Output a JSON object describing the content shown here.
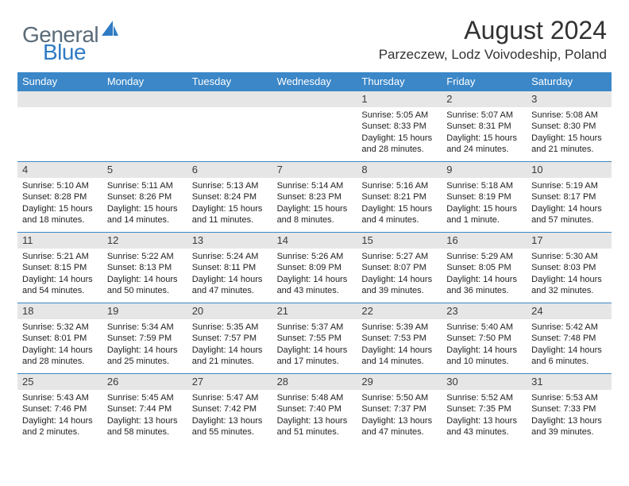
{
  "brand": {
    "part1": "General",
    "part2": "Blue"
  },
  "title": "August 2024",
  "location": "Parzeczew, Lodz Voivodeship, Poland",
  "colors": {
    "header_bg": "#3b87c8",
    "header_text": "#ffffff",
    "daynum_bg": "#e6e6e6",
    "week_border": "#3b87c8",
    "title_color": "#323232",
    "logo_gray": "#5a6a78",
    "logo_blue": "#2f7bc4"
  },
  "typography": {
    "title_fontsize": 32,
    "subtitle_fontsize": 17,
    "dayheader_fontsize": 13,
    "daynum_fontsize": 13,
    "body_fontsize": 11
  },
  "layout": {
    "columns": 7,
    "rows": 5,
    "cell_min_height": 88
  },
  "day_names": [
    "Sunday",
    "Monday",
    "Tuesday",
    "Wednesday",
    "Thursday",
    "Friday",
    "Saturday"
  ],
  "weeks": [
    [
      {
        "num": "",
        "sunrise": "",
        "sunset": "",
        "daylight": ""
      },
      {
        "num": "",
        "sunrise": "",
        "sunset": "",
        "daylight": ""
      },
      {
        "num": "",
        "sunrise": "",
        "sunset": "",
        "daylight": ""
      },
      {
        "num": "",
        "sunrise": "",
        "sunset": "",
        "daylight": ""
      },
      {
        "num": "1",
        "sunrise": "Sunrise: 5:05 AM",
        "sunset": "Sunset: 8:33 PM",
        "daylight": "Daylight: 15 hours and 28 minutes."
      },
      {
        "num": "2",
        "sunrise": "Sunrise: 5:07 AM",
        "sunset": "Sunset: 8:31 PM",
        "daylight": "Daylight: 15 hours and 24 minutes."
      },
      {
        "num": "3",
        "sunrise": "Sunrise: 5:08 AM",
        "sunset": "Sunset: 8:30 PM",
        "daylight": "Daylight: 15 hours and 21 minutes."
      }
    ],
    [
      {
        "num": "4",
        "sunrise": "Sunrise: 5:10 AM",
        "sunset": "Sunset: 8:28 PM",
        "daylight": "Daylight: 15 hours and 18 minutes."
      },
      {
        "num": "5",
        "sunrise": "Sunrise: 5:11 AM",
        "sunset": "Sunset: 8:26 PM",
        "daylight": "Daylight: 15 hours and 14 minutes."
      },
      {
        "num": "6",
        "sunrise": "Sunrise: 5:13 AM",
        "sunset": "Sunset: 8:24 PM",
        "daylight": "Daylight: 15 hours and 11 minutes."
      },
      {
        "num": "7",
        "sunrise": "Sunrise: 5:14 AM",
        "sunset": "Sunset: 8:23 PM",
        "daylight": "Daylight: 15 hours and 8 minutes."
      },
      {
        "num": "8",
        "sunrise": "Sunrise: 5:16 AM",
        "sunset": "Sunset: 8:21 PM",
        "daylight": "Daylight: 15 hours and 4 minutes."
      },
      {
        "num": "9",
        "sunrise": "Sunrise: 5:18 AM",
        "sunset": "Sunset: 8:19 PM",
        "daylight": "Daylight: 15 hours and 1 minute."
      },
      {
        "num": "10",
        "sunrise": "Sunrise: 5:19 AM",
        "sunset": "Sunset: 8:17 PM",
        "daylight": "Daylight: 14 hours and 57 minutes."
      }
    ],
    [
      {
        "num": "11",
        "sunrise": "Sunrise: 5:21 AM",
        "sunset": "Sunset: 8:15 PM",
        "daylight": "Daylight: 14 hours and 54 minutes."
      },
      {
        "num": "12",
        "sunrise": "Sunrise: 5:22 AM",
        "sunset": "Sunset: 8:13 PM",
        "daylight": "Daylight: 14 hours and 50 minutes."
      },
      {
        "num": "13",
        "sunrise": "Sunrise: 5:24 AM",
        "sunset": "Sunset: 8:11 PM",
        "daylight": "Daylight: 14 hours and 47 minutes."
      },
      {
        "num": "14",
        "sunrise": "Sunrise: 5:26 AM",
        "sunset": "Sunset: 8:09 PM",
        "daylight": "Daylight: 14 hours and 43 minutes."
      },
      {
        "num": "15",
        "sunrise": "Sunrise: 5:27 AM",
        "sunset": "Sunset: 8:07 PM",
        "daylight": "Daylight: 14 hours and 39 minutes."
      },
      {
        "num": "16",
        "sunrise": "Sunrise: 5:29 AM",
        "sunset": "Sunset: 8:05 PM",
        "daylight": "Daylight: 14 hours and 36 minutes."
      },
      {
        "num": "17",
        "sunrise": "Sunrise: 5:30 AM",
        "sunset": "Sunset: 8:03 PM",
        "daylight": "Daylight: 14 hours and 32 minutes."
      }
    ],
    [
      {
        "num": "18",
        "sunrise": "Sunrise: 5:32 AM",
        "sunset": "Sunset: 8:01 PM",
        "daylight": "Daylight: 14 hours and 28 minutes."
      },
      {
        "num": "19",
        "sunrise": "Sunrise: 5:34 AM",
        "sunset": "Sunset: 7:59 PM",
        "daylight": "Daylight: 14 hours and 25 minutes."
      },
      {
        "num": "20",
        "sunrise": "Sunrise: 5:35 AM",
        "sunset": "Sunset: 7:57 PM",
        "daylight": "Daylight: 14 hours and 21 minutes."
      },
      {
        "num": "21",
        "sunrise": "Sunrise: 5:37 AM",
        "sunset": "Sunset: 7:55 PM",
        "daylight": "Daylight: 14 hours and 17 minutes."
      },
      {
        "num": "22",
        "sunrise": "Sunrise: 5:39 AM",
        "sunset": "Sunset: 7:53 PM",
        "daylight": "Daylight: 14 hours and 14 minutes."
      },
      {
        "num": "23",
        "sunrise": "Sunrise: 5:40 AM",
        "sunset": "Sunset: 7:50 PM",
        "daylight": "Daylight: 14 hours and 10 minutes."
      },
      {
        "num": "24",
        "sunrise": "Sunrise: 5:42 AM",
        "sunset": "Sunset: 7:48 PM",
        "daylight": "Daylight: 14 hours and 6 minutes."
      }
    ],
    [
      {
        "num": "25",
        "sunrise": "Sunrise: 5:43 AM",
        "sunset": "Sunset: 7:46 PM",
        "daylight": "Daylight: 14 hours and 2 minutes."
      },
      {
        "num": "26",
        "sunrise": "Sunrise: 5:45 AM",
        "sunset": "Sunset: 7:44 PM",
        "daylight": "Daylight: 13 hours and 58 minutes."
      },
      {
        "num": "27",
        "sunrise": "Sunrise: 5:47 AM",
        "sunset": "Sunset: 7:42 PM",
        "daylight": "Daylight: 13 hours and 55 minutes."
      },
      {
        "num": "28",
        "sunrise": "Sunrise: 5:48 AM",
        "sunset": "Sunset: 7:40 PM",
        "daylight": "Daylight: 13 hours and 51 minutes."
      },
      {
        "num": "29",
        "sunrise": "Sunrise: 5:50 AM",
        "sunset": "Sunset: 7:37 PM",
        "daylight": "Daylight: 13 hours and 47 minutes."
      },
      {
        "num": "30",
        "sunrise": "Sunrise: 5:52 AM",
        "sunset": "Sunset: 7:35 PM",
        "daylight": "Daylight: 13 hours and 43 minutes."
      },
      {
        "num": "31",
        "sunrise": "Sunrise: 5:53 AM",
        "sunset": "Sunset: 7:33 PM",
        "daylight": "Daylight: 13 hours and 39 minutes."
      }
    ]
  ]
}
